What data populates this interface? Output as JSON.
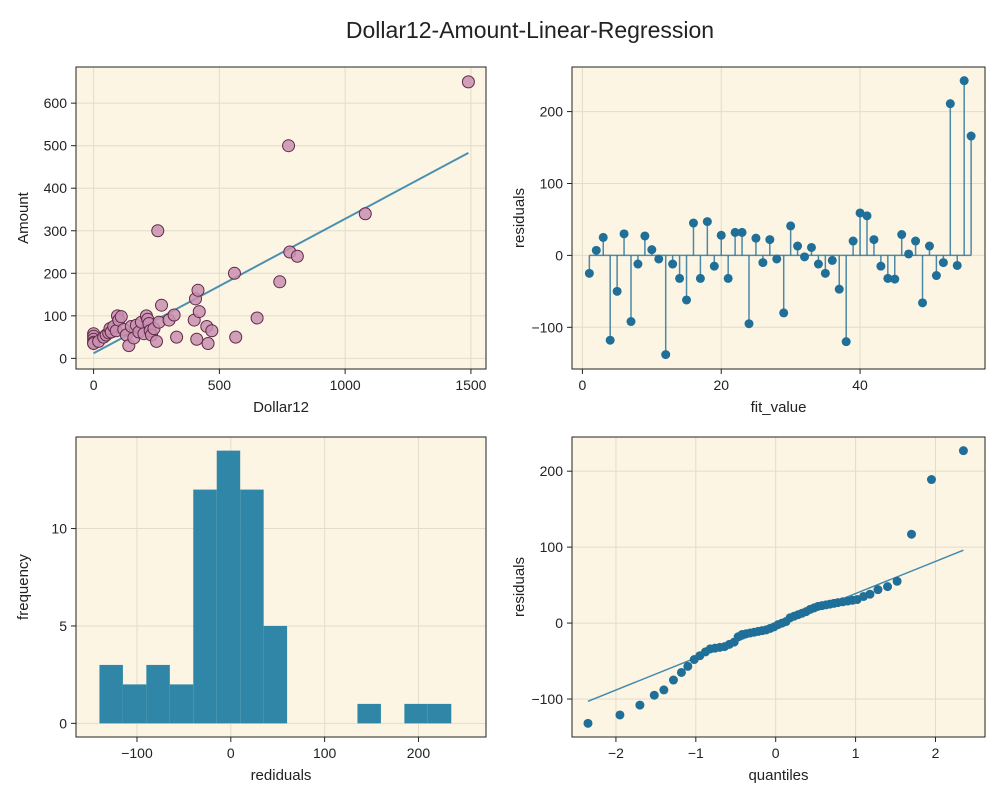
{
  "figure": {
    "title": "Dollar12-Amount-Linear-Regression",
    "colors": {
      "panel_bg": "#fdf5e3",
      "grid": "#e3dccb",
      "frame": "#222222",
      "scatter_fill": "#c98fb0",
      "scatter_edge": "#5e2a46",
      "fit_line": "#2c7fa8",
      "residual": "#1f6f99",
      "hist": "#2f86a6"
    }
  },
  "chart_data": [
    {
      "type": "scatter",
      "title": "",
      "xlabel": "Dollar12",
      "ylabel": "Amount",
      "xlim": [
        -70,
        1560
      ],
      "ylim": [
        -25,
        685
      ],
      "xticks": [
        0,
        500,
        1000,
        1500
      ],
      "yticks": [
        0,
        100,
        200,
        300,
        400,
        500,
        600
      ],
      "grid": true,
      "points": [
        [
          0,
          58
        ],
        [
          0,
          52
        ],
        [
          0,
          45
        ],
        [
          0,
          38
        ],
        [
          0,
          35
        ],
        [
          20,
          40
        ],
        [
          40,
          50
        ],
        [
          50,
          55
        ],
        [
          60,
          60
        ],
        [
          65,
          70
        ],
        [
          70,
          62
        ],
        [
          80,
          75
        ],
        [
          90,
          65
        ],
        [
          95,
          100
        ],
        [
          100,
          90
        ],
        [
          110,
          98
        ],
        [
          120,
          68
        ],
        [
          130,
          55
        ],
        [
          140,
          30
        ],
        [
          150,
          75
        ],
        [
          160,
          48
        ],
        [
          170,
          78
        ],
        [
          180,
          62
        ],
        [
          190,
          85
        ],
        [
          200,
          58
        ],
        [
          210,
          100
        ],
        [
          215,
          92
        ],
        [
          220,
          82
        ],
        [
          225,
          65
        ],
        [
          230,
          55
        ],
        [
          240,
          70
        ],
        [
          250,
          40
        ],
        [
          255,
          300
        ],
        [
          260,
          85
        ],
        [
          270,
          125
        ],
        [
          300,
          90
        ],
        [
          320,
          102
        ],
        [
          330,
          50
        ],
        [
          400,
          90
        ],
        [
          405,
          140
        ],
        [
          410,
          45
        ],
        [
          415,
          160
        ],
        [
          420,
          110
        ],
        [
          450,
          75
        ],
        [
          455,
          35
        ],
        [
          470,
          65
        ],
        [
          560,
          200
        ],
        [
          565,
          50
        ],
        [
          650,
          95
        ],
        [
          740,
          180
        ],
        [
          775,
          500
        ],
        [
          780,
          250
        ],
        [
          810,
          240
        ],
        [
          1080,
          340
        ],
        [
          1490,
          650
        ]
      ],
      "fit_line": {
        "x": [
          0,
          1490
        ],
        "y": [
          12,
          483
        ]
      }
    },
    {
      "type": "stem",
      "title": "",
      "xlabel": "fit_value",
      "ylabel": "residuals",
      "xlim": [
        -1.5,
        58
      ],
      "ylim": [
        -158,
        262
      ],
      "xticks": [
        0,
        20,
        40
      ],
      "yticks": [
        -100,
        0,
        100,
        200
      ],
      "grid": true,
      "x": [
        1,
        2,
        3,
        4,
        5,
        6,
        7,
        8,
        9,
        10,
        11,
        12,
        13,
        14,
        15,
        16,
        17,
        18,
        19,
        20,
        21,
        22,
        23,
        24,
        25,
        26,
        27,
        28,
        29,
        30,
        31,
        32,
        33,
        34,
        35,
        36,
        37,
        38,
        39,
        40,
        41,
        42,
        43,
        44,
        45,
        46,
        47,
        48,
        49,
        50,
        51,
        52,
        53,
        54,
        55,
        56
      ],
      "values": [
        -25,
        7,
        25,
        -118,
        -50,
        30,
        -92,
        -12,
        27,
        8,
        -5,
        -138,
        -12,
        -32,
        -62,
        45,
        -32,
        47,
        -15,
        28,
        -32,
        32,
        32,
        -95,
        24,
        -10,
        22,
        -5,
        -80,
        41,
        13,
        -2,
        11,
        -12,
        -25,
        -7,
        -47,
        -120,
        20,
        59,
        55,
        22,
        -15,
        -32,
        -33,
        29,
        2,
        20,
        -66,
        13,
        -28,
        -10,
        211,
        -14,
        243,
        166
      ]
    },
    {
      "type": "histogram",
      "title": "",
      "xlabel": "rediduals",
      "ylabel": "frequency",
      "xlim": [
        -165,
        272
      ],
      "ylim": [
        -0.7,
        14.7
      ],
      "xticks": [
        -100,
        0,
        100,
        200
      ],
      "yticks": [
        0,
        5,
        10
      ],
      "grid": true,
      "bin_edges": [
        -140,
        -115,
        -90,
        -65,
        -40,
        -15,
        10,
        35,
        60,
        85,
        110,
        135,
        160,
        185,
        210,
        235
      ],
      "counts": [
        3,
        2,
        3,
        2,
        12,
        14,
        12,
        5,
        0,
        0,
        0,
        1,
        0,
        1,
        1
      ]
    },
    {
      "type": "scatter",
      "title": "",
      "xlabel": "quantiles",
      "ylabel": "residuals",
      "xlim": [
        -2.55,
        2.62
      ],
      "ylim": [
        -150,
        245
      ],
      "xticks": [
        -2,
        -1,
        0,
        1,
        2
      ],
      "yticks": [
        -100,
        0,
        100,
        200
      ],
      "grid": true,
      "points": [
        [
          -2.35,
          -132
        ],
        [
          -1.95,
          -121
        ],
        [
          -1.7,
          -108
        ],
        [
          -1.52,
          -95
        ],
        [
          -1.4,
          -88
        ],
        [
          -1.28,
          -75
        ],
        [
          -1.18,
          -65
        ],
        [
          -1.1,
          -57
        ],
        [
          -1.02,
          -48
        ],
        [
          -0.95,
          -43
        ],
        [
          -0.88,
          -38
        ],
        [
          -0.82,
          -34
        ],
        [
          -0.76,
          -33
        ],
        [
          -0.7,
          -32
        ],
        [
          -0.64,
          -31
        ],
        [
          -0.58,
          -28
        ],
        [
          -0.52,
          -25
        ],
        [
          -0.47,
          -18
        ],
        [
          -0.42,
          -15
        ],
        [
          -0.37,
          -14
        ],
        [
          -0.32,
          -13
        ],
        [
          -0.27,
          -12
        ],
        [
          -0.22,
          -11
        ],
        [
          -0.17,
          -10
        ],
        [
          -0.12,
          -9
        ],
        [
          -0.07,
          -7
        ],
        [
          -0.02,
          -5
        ],
        [
          0.03,
          -2
        ],
        [
          0.08,
          0
        ],
        [
          0.13,
          2
        ],
        [
          0.18,
          7
        ],
        [
          0.23,
          9
        ],
        [
          0.28,
          11
        ],
        [
          0.33,
          13
        ],
        [
          0.38,
          15
        ],
        [
          0.43,
          18
        ],
        [
          0.48,
          20
        ],
        [
          0.53,
          22
        ],
        [
          0.58,
          23
        ],
        [
          0.63,
          24
        ],
        [
          0.68,
          25
        ],
        [
          0.73,
          26
        ],
        [
          0.78,
          27
        ],
        [
          0.84,
          28
        ],
        [
          0.9,
          29
        ],
        [
          0.96,
          30
        ],
        [
          1.02,
          31
        ],
        [
          1.1,
          35
        ],
        [
          1.18,
          38
        ],
        [
          1.28,
          44
        ],
        [
          1.4,
          48
        ],
        [
          1.52,
          55
        ],
        [
          1.7,
          117
        ],
        [
          1.95,
          189
        ],
        [
          2.35,
          227
        ]
      ],
      "ref_line": {
        "x": [
          -2.35,
          2.35
        ],
        "y": [
          -103,
          96
        ]
      }
    }
  ]
}
